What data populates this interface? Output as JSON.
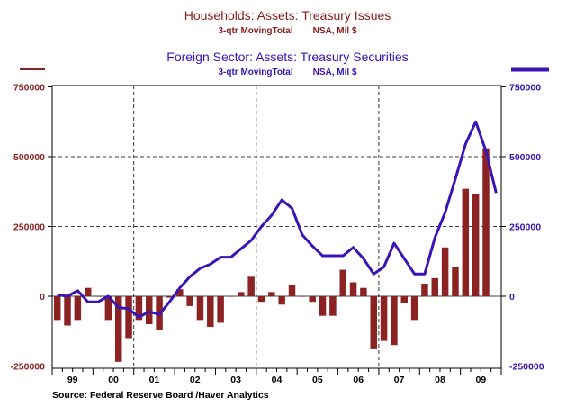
{
  "chart_data": {
    "type": "bar+line",
    "title": "Households: Assets: Treasury Issues",
    "subtitle_left": "3-qtr MovingTotal",
    "subtitle_right": "NSA, Mil $",
    "title2": "Foreign Sector: Assets: Treasury Securities",
    "subtitle2_left": "3-qtr MovingTotal",
    "subtitle2_right": "NSA, Mil $",
    "source": "Source:  Federal Reserve Board /Haver Analytics",
    "ylim": [
      -250000,
      750000
    ],
    "yticks": [
      -250000,
      0,
      250000,
      500000,
      750000
    ],
    "left_tick_labels": [
      "-250000",
      "0",
      "250000",
      "500000",
      "750000"
    ],
    "right_tick_labels": [
      "-250000",
      "0",
      "250000",
      "500000",
      "750000"
    ],
    "years": [
      "99",
      "00",
      "01",
      "02",
      "03",
      "04",
      "05",
      "06",
      "07",
      "08",
      "09"
    ],
    "quarters_start": "1999Q1",
    "series": [
      {
        "name": "Households: Assets: Treasury Issues",
        "type": "bar",
        "color": "#8b2323",
        "axis": "left",
        "values": [
          -85000,
          -105000,
          -85000,
          30000,
          0,
          -85000,
          -235000,
          -150000,
          -85000,
          -100000,
          -120000,
          -5000,
          25000,
          -35000,
          -85000,
          -110000,
          -95000,
          0,
          15000,
          70000,
          -20000,
          15000,
          -30000,
          40000,
          0,
          -20000,
          -70000,
          -70000,
          95000,
          50000,
          30000,
          -190000,
          -160000,
          -175000,
          -25000,
          -85000,
          45000,
          65000,
          175000,
          105000,
          385000,
          365000,
          530000
        ]
      },
      {
        "name": "Foreign Sector: Assets: Treasury Securities",
        "type": "line",
        "color": "#3a14b4",
        "axis": "right",
        "values": [
          5000,
          0,
          20000,
          -20000,
          -20000,
          0,
          -40000,
          -45000,
          -75000,
          -55000,
          -65000,
          -20000,
          30000,
          70000,
          100000,
          115000,
          140000,
          140000,
          170000,
          200000,
          250000,
          290000,
          345000,
          315000,
          220000,
          180000,
          145000,
          145000,
          145000,
          175000,
          135000,
          80000,
          105000,
          190000,
          135000,
          80000,
          80000,
          210000,
          300000,
          420000,
          545000,
          625000,
          520000,
          370000
        ]
      }
    ]
  }
}
